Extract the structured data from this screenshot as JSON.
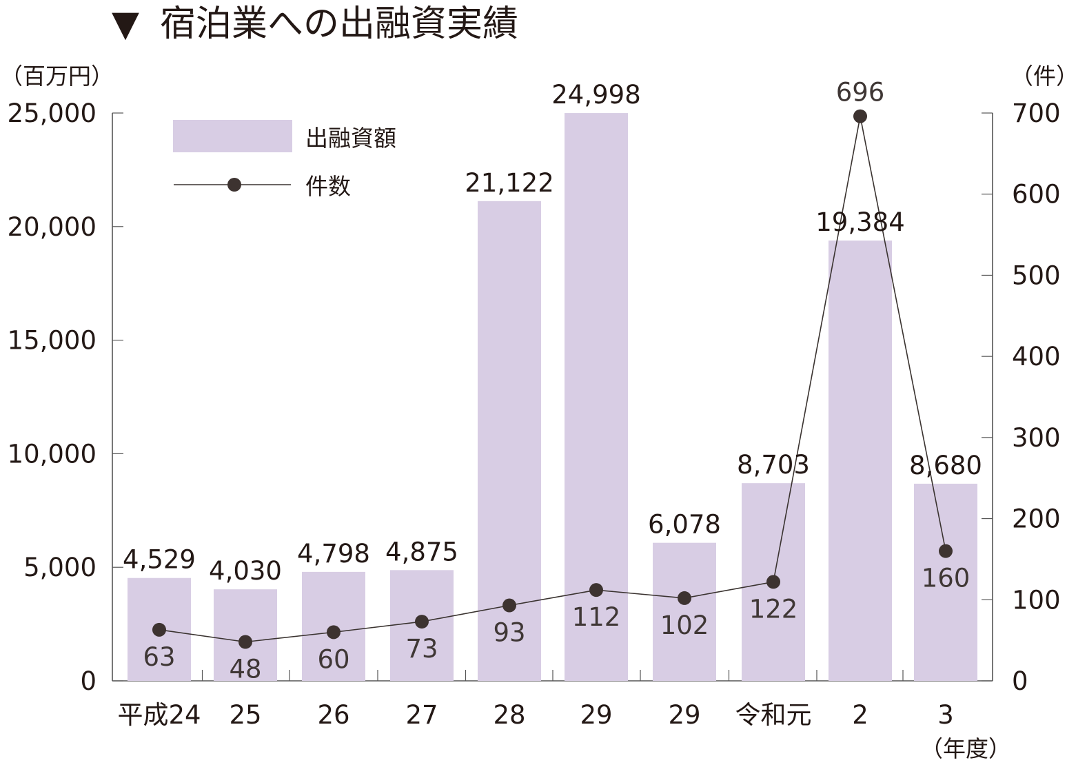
{
  "chart_data": {
    "type": "bar+line",
    "title_marker": "▼",
    "title": "宿泊業への出融資実績",
    "left_axis_unit": "（百万円）",
    "right_axis_unit": "（件）",
    "x_unit": "（年度）",
    "categories": [
      "平成24",
      "25",
      "26",
      "27",
      "28",
      "29",
      "29",
      "令和元",
      "2",
      "3"
    ],
    "series": [
      {
        "name": "出融資額",
        "type": "bar",
        "axis": "left",
        "color": "#d8cde4",
        "values": [
          4529,
          4030,
          4798,
          4875,
          21122,
          24998,
          6078,
          8703,
          19384,
          8680
        ],
        "labels": [
          "4,529",
          "4,030",
          "4,798",
          "4,875",
          "21,122",
          "24,998",
          "6,078",
          "8,703",
          "19,384",
          "8,680"
        ]
      },
      {
        "name": "件数",
        "type": "line",
        "axis": "right",
        "color": "#3d3330",
        "values": [
          63,
          48,
          60,
          73,
          93,
          112,
          102,
          122,
          696,
          160
        ],
        "labels": [
          "63",
          "48",
          "60",
          "73",
          "93",
          "112",
          "102",
          "122",
          "696",
          "160"
        ]
      }
    ],
    "left_ylim": [
      0,
      25000
    ],
    "left_ticks": [
      0,
      5000,
      10000,
      15000,
      20000,
      25000
    ],
    "left_tick_labels": [
      "0",
      "5,000",
      "10,000",
      "15,000",
      "20,000",
      "25,000"
    ],
    "right_ylim": [
      0,
      700
    ],
    "right_ticks": [
      0,
      100,
      200,
      300,
      400,
      500,
      600,
      700
    ],
    "right_tick_labels": [
      "0",
      "100",
      "200",
      "300",
      "400",
      "500",
      "600",
      "700"
    ],
    "legend": [
      "出融資額",
      "件数"
    ],
    "legend_position": "top-left"
  }
}
